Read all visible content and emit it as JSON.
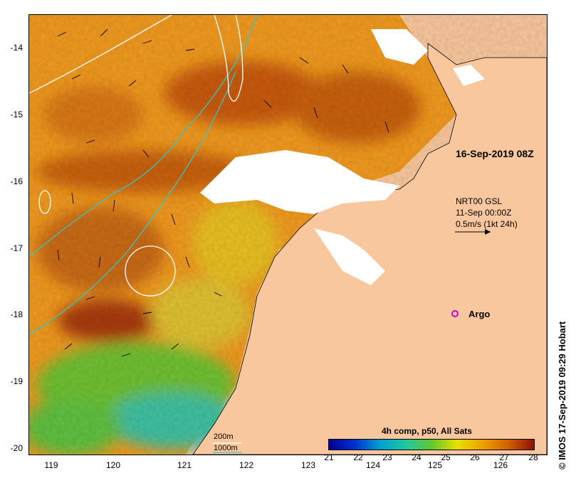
{
  "title_timestamp": "16-Sep-2019 08Z",
  "current_info": {
    "line1": "NRT00 GSL",
    "line2": "11-Sep 00:00Z",
    "line3": "0.5m/s (1kt 24h)"
  },
  "argo": {
    "label": "Argo",
    "color": "#d000d0"
  },
  "depth_legend": {
    "shallow": "200m",
    "deep": "1000m",
    "deep_color": "#30c8c8"
  },
  "colorbar": {
    "title": "4h comp, p50, All Sats",
    "ticks": [
      "21",
      "22",
      "23",
      "24",
      "25",
      "26",
      "27",
      "28"
    ],
    "colors": [
      "#000090",
      "#0030d0",
      "#00a0d0",
      "#20c8a0",
      "#60c830",
      "#e8e000",
      "#f0a000",
      "#d06000",
      "#901000"
    ]
  },
  "y_axis": [
    "-14",
    "-15",
    "-16",
    "-17",
    "-18",
    "-19",
    "-20"
  ],
  "x_axis": [
    "119",
    "120",
    "121",
    "122",
    "123",
    "124",
    "125",
    "126"
  ],
  "credit": "© IMOS 17-Sep-2019 09:29 Hobart",
  "land_color": "#f9c79d"
}
